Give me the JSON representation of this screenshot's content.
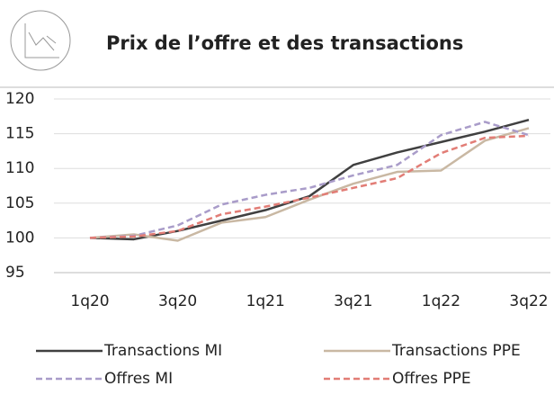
{
  "chart_data": {
    "type": "line",
    "title": "Prix de l’offre et des transactions",
    "categories": [
      "1q20",
      null,
      "3q20",
      null,
      "1q21",
      null,
      "3q21",
      null,
      "1q22",
      null,
      "3q22"
    ],
    "series": [
      {
        "name": "Transactions MI",
        "color": "#404040",
        "dashed": false,
        "values": [
          100,
          99.8,
          101,
          102.5,
          104,
          106,
          110.5,
          112.3,
          113.8,
          115.3,
          117
        ]
      },
      {
        "name": "Transactions PPE",
        "color": "#c9b8a3",
        "dashed": false,
        "values": [
          100,
          100.5,
          99.6,
          102.2,
          103,
          105.5,
          107.8,
          109.5,
          109.7,
          114,
          115.8
        ]
      },
      {
        "name": "Offres MI",
        "color": "#a99cc9",
        "dashed": true,
        "values": [
          100,
          100.3,
          101.8,
          104.8,
          106.2,
          107.2,
          109,
          110.5,
          114.8,
          116.7,
          114.8
        ]
      },
      {
        "name": "Offres PPE",
        "color": "#e27d76",
        "dashed": true,
        "values": [
          100,
          100.2,
          101,
          103.4,
          104.5,
          105.8,
          107.2,
          108.6,
          112.2,
          114.4,
          114.7
        ]
      }
    ],
    "ylim": [
      95,
      120
    ],
    "yticks": [
      95,
      100,
      105,
      110,
      115,
      120
    ],
    "grid": true
  }
}
